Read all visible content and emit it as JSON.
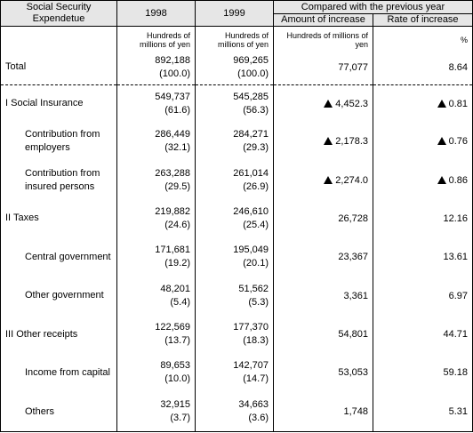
{
  "header": {
    "item": "Social Security Expendetue",
    "year1": "1998",
    "year2": "1999",
    "compared": "Compared with the previous year",
    "amount": "Amount of increase",
    "rate": "Rate of increase"
  },
  "units": {
    "year1": "Hundreds of millions of yen",
    "year2": "Hundreds of millions of yen",
    "amount": "Hundreds of millions of yen",
    "rate": "%"
  },
  "rows": [
    {
      "label": "Total",
      "v1998": "892,188",
      "s1998": "(100.0)",
      "v1999": "969,265",
      "s1999": "(100.0)",
      "amount": "77,077",
      "amount_neg": false,
      "rate": "8.64",
      "rate_neg": false
    },
    {
      "label": "I Social Insurance",
      "v1998": "549,737",
      "s1998": "(61.6)",
      "v1999": "545,285",
      "s1999": "(56.3)",
      "amount": "4,452.3",
      "amount_neg": true,
      "rate": "0.81",
      "rate_neg": true
    },
    {
      "label": "Contribution from employers",
      "v1998": "286,449",
      "s1998": "(32.1)",
      "v1999": "284,271",
      "s1999": "(29.3)",
      "amount": "2,178.3",
      "amount_neg": true,
      "rate": "0.76",
      "rate_neg": true
    },
    {
      "label": "Contribution from insured persons",
      "v1998": "263,288",
      "s1998": "(29.5)",
      "v1999": "261,014",
      "s1999": "(26.9)",
      "amount": "2,274.0",
      "amount_neg": true,
      "rate": "0.86",
      "rate_neg": true
    },
    {
      "label": "II Taxes",
      "v1998": "219,882",
      "s1998": "(24.6)",
      "v1999": "246,610",
      "s1999": "(25.4)",
      "amount": "26,728",
      "amount_neg": false,
      "rate": "12.16",
      "rate_neg": false
    },
    {
      "label": "Central government",
      "v1998": "171,681",
      "s1998": "(19.2)",
      "v1999": "195,049",
      "s1999": "(20.1)",
      "amount": "23,367",
      "amount_neg": false,
      "rate": "13.61",
      "rate_neg": false
    },
    {
      "label": "Other government",
      "v1998": "48,201",
      "s1998": "(5.4)",
      "v1999": "51,562",
      "s1999": "(5.3)",
      "amount": "3,361",
      "amount_neg": false,
      "rate": "6.97",
      "rate_neg": false
    },
    {
      "label": "III Other receipts",
      "v1998": "122,569",
      "s1998": "(13.7)",
      "v1999": "177,370",
      "s1999": "(18.3)",
      "amount": "54,801",
      "amount_neg": false,
      "rate": "44.71",
      "rate_neg": false
    },
    {
      "label": "Income from capital",
      "v1998": "89,653",
      "s1998": "(10.0)",
      "v1999": "142,707",
      "s1999": "(14.7)",
      "amount": "53,053",
      "amount_neg": false,
      "rate": "59.18",
      "rate_neg": false
    },
    {
      "label": "Others",
      "v1998": "32,915",
      "s1998": "(3.7)",
      "v1999": "34,663",
      "s1999": "(3.6)",
      "amount": "1,748",
      "amount_neg": false,
      "rate": "5.31",
      "rate_neg": false
    }
  ]
}
